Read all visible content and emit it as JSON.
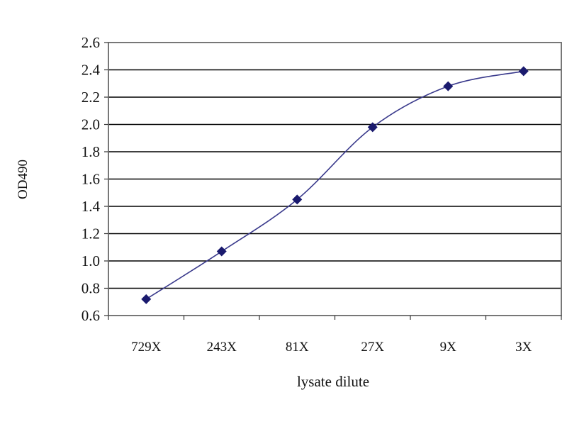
{
  "chart_data": {
    "type": "line",
    "title": "",
    "xlabel": "lysate dilute",
    "ylabel": "OD490",
    "categories": [
      "729X",
      "243X",
      "81X",
      "27X",
      "9X",
      "3X"
    ],
    "series": [
      {
        "values": [
          0.72,
          1.07,
          1.45,
          1.98,
          2.28,
          2.39
        ]
      }
    ],
    "ylim": [
      0.6,
      2.6
    ],
    "yticks": [
      "0.6",
      "0.8",
      "1.0",
      "1.2",
      "1.4",
      "1.6",
      "1.8",
      "2.0",
      "2.2",
      "2.4",
      "2.6"
    ],
    "grid": "horizontal",
    "smoothed": true,
    "marker": "diamond",
    "colors": {
      "line": "#3a3a8c",
      "marker": "#1a1a6e",
      "grid": "#000000"
    }
  }
}
